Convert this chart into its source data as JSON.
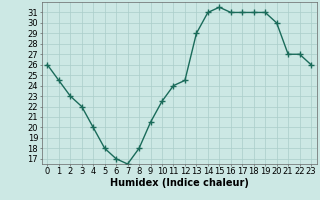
{
  "x": [
    0,
    1,
    2,
    3,
    4,
    5,
    6,
    7,
    8,
    9,
    10,
    11,
    12,
    13,
    14,
    15,
    16,
    17,
    18,
    19,
    20,
    21,
    22,
    23
  ],
  "y": [
    26,
    24.5,
    23,
    22,
    20,
    18,
    17,
    16.5,
    18,
    20.5,
    22.5,
    24,
    24.5,
    29,
    31,
    31.5,
    31,
    31,
    31,
    31,
    30,
    27,
    27,
    26
  ],
  "line_color": "#1a6b5a",
  "marker": "+",
  "marker_size": 4,
  "linewidth": 1.0,
  "bg_color": "#cce8e4",
  "grid_color": "#aaceca",
  "xlabel": "Humidex (Indice chaleur)",
  "ylim": [
    16.5,
    32
  ],
  "yticks": [
    17,
    18,
    19,
    20,
    21,
    22,
    23,
    24,
    25,
    26,
    27,
    28,
    29,
    30,
    31
  ],
  "xticks": [
    0,
    1,
    2,
    3,
    4,
    5,
    6,
    7,
    8,
    9,
    10,
    11,
    12,
    13,
    14,
    15,
    16,
    17,
    18,
    19,
    20,
    21,
    22,
    23
  ],
  "xlabel_fontsize": 7,
  "tick_fontsize": 6
}
